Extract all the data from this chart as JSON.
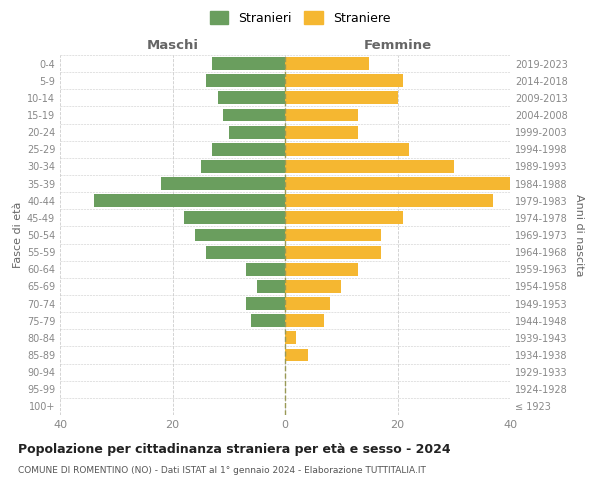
{
  "age_groups": [
    "100+",
    "95-99",
    "90-94",
    "85-89",
    "80-84",
    "75-79",
    "70-74",
    "65-69",
    "60-64",
    "55-59",
    "50-54",
    "45-49",
    "40-44",
    "35-39",
    "30-34",
    "25-29",
    "20-24",
    "15-19",
    "10-14",
    "5-9",
    "0-4"
  ],
  "birth_years": [
    "≤ 1923",
    "1924-1928",
    "1929-1933",
    "1934-1938",
    "1939-1943",
    "1944-1948",
    "1949-1953",
    "1954-1958",
    "1959-1963",
    "1964-1968",
    "1969-1973",
    "1974-1978",
    "1979-1983",
    "1984-1988",
    "1989-1993",
    "1994-1998",
    "1999-2003",
    "2004-2008",
    "2009-2013",
    "2014-2018",
    "2019-2023"
  ],
  "males": [
    0,
    0,
    0,
    0,
    0,
    6,
    7,
    5,
    7,
    14,
    16,
    18,
    34,
    22,
    15,
    13,
    10,
    11,
    12,
    14,
    13
  ],
  "females": [
    0,
    0,
    0,
    4,
    2,
    7,
    8,
    10,
    13,
    17,
    17,
    21,
    37,
    40,
    30,
    22,
    13,
    13,
    20,
    21,
    15
  ],
  "male_color": "#6a9e5e",
  "female_color": "#f5b731",
  "background_color": "#ffffff",
  "grid_color": "#cccccc",
  "title": "Popolazione per cittadinanza straniera per età e sesso - 2024",
  "subtitle": "COMUNE DI ROMENTINO (NO) - Dati ISTAT al 1° gennaio 2024 - Elaborazione TUTTITALIA.IT",
  "xlabel_left": "Maschi",
  "xlabel_right": "Femmine",
  "ylabel_left": "Fasce di età",
  "ylabel_right": "Anni di nascita",
  "legend_stranieri": "Stranieri",
  "legend_straniere": "Straniere",
  "xlim": 40,
  "tick_color": "#888888",
  "bar_height": 0.75
}
